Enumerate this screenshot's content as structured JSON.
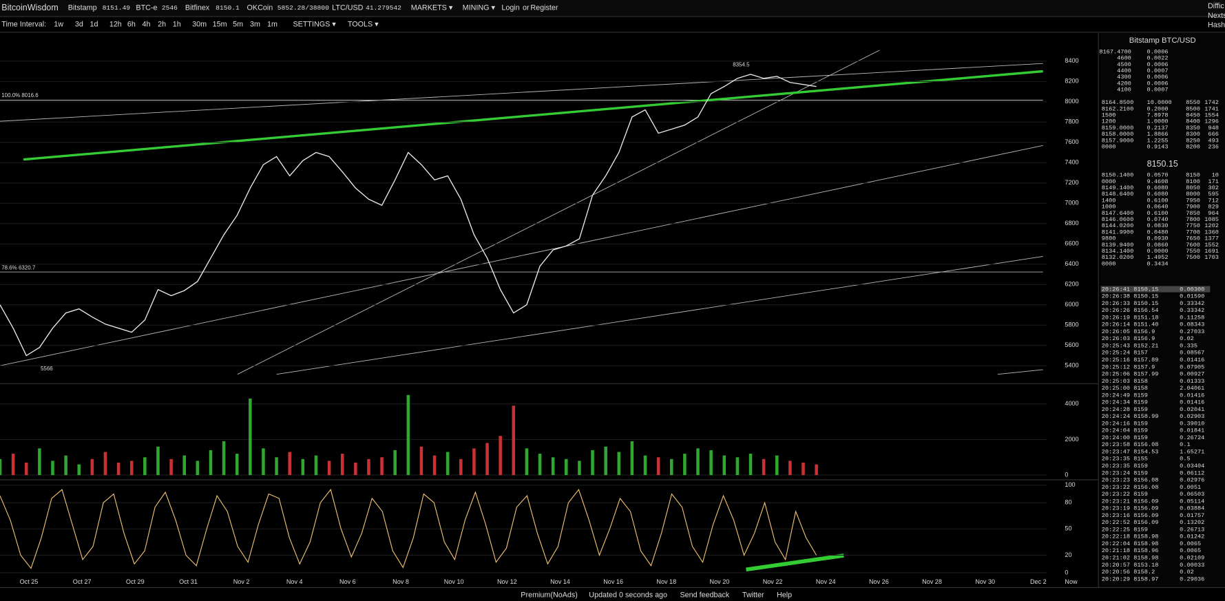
{
  "header": {
    "brand": "BitcoinWisdom",
    "tickers": [
      {
        "name": "Bitstamp",
        "price": "8151.49"
      },
      {
        "name": "BTC-e",
        "price": "2546"
      },
      {
        "name": "Bitfinex",
        "price": "8150.1"
      },
      {
        "name": "OKCoin",
        "price": "5852.28/38800"
      },
      {
        "name": "LTC/USD",
        "price": "41.279542"
      }
    ],
    "menus": [
      "MARKETS ▾",
      "MINING ▾"
    ],
    "login": "Login",
    "or": "or",
    "register": "Register",
    "side": [
      "Diffic",
      "Nexts",
      "Hash"
    ]
  },
  "toolbar": {
    "label": "Time Interval:",
    "intervals": [
      "1w",
      "3d",
      "1d",
      "12h",
      "6h",
      "4h",
      "2h",
      "1h",
      "30m",
      "15m",
      "5m",
      "3m",
      "1m"
    ],
    "settings": "SETTINGS ▾",
    "tools": "TOOLS ▾"
  },
  "price_chart": {
    "closes": [
      6000,
      5770,
      5500,
      5580,
      5770,
      5920,
      5960,
      5880,
      5810,
      5770,
      5730,
      5850,
      6150,
      6090,
      6140,
      6230,
      6460,
      6690,
      6880,
      7150,
      7380,
      7460,
      7270,
      7420,
      7500,
      7460,
      7310,
      7150,
      7040,
      6980,
      7230,
      7500,
      7380,
      7230,
      7270,
      7040,
      6690,
      6460,
      6150,
      5920,
      6000,
      6380,
      6540,
      6580,
      6650,
      7080,
      7270,
      7500,
      7850,
      7920,
      7690,
      7730,
      7770,
      7850,
      8080,
      8150,
      8230,
      8270,
      8230,
      8250,
      8190,
      8170,
      8150
    ],
    "color": "#e8e8e8",
    "ylim": [
      5231,
      8677
    ],
    "yticks": [
      5400,
      5600,
      5800,
      6000,
      6200,
      6400,
      6600,
      6800,
      7000,
      7200,
      7400,
      7600,
      7800,
      8000,
      8200,
      8400
    ],
    "annotations": [
      "100.0% 8016.6",
      "78.6% 6320.7",
      "8354.5",
      "5566"
    ]
  },
  "volume_chart": {
    "values": [
      900,
      1200,
      700,
      1500,
      800,
      1100,
      600,
      900,
      1300,
      700,
      800,
      1000,
      1600,
      900,
      1100,
      800,
      1400,
      1900,
      1200,
      4300,
      1500,
      1000,
      1300,
      900,
      1100,
      800,
      1200,
      700,
      900,
      1000,
      1400,
      4500,
      1600,
      1100,
      1300,
      900,
      1500,
      1800,
      2200,
      3900,
      1500,
      1200,
      1000,
      900,
      800,
      1400,
      1600,
      1300,
      1900,
      1100,
      1000,
      900,
      1200,
      1500,
      1400,
      1100,
      1000,
      1200,
      900,
      1100,
      800,
      700,
      600
    ],
    "up_color": "#2fa82f",
    "down_color": "#c83232",
    "ylim": [
      0,
      5091
    ],
    "yticks": [
      0,
      2000,
      4000
    ]
  },
  "oscillator": {
    "values": [
      88,
      60,
      20,
      5,
      40,
      85,
      95,
      55,
      15,
      30,
      80,
      90,
      45,
      10,
      25,
      75,
      92,
      60,
      20,
      8,
      50,
      88,
      70,
      30,
      12,
      55,
      90,
      85,
      40,
      10,
      35,
      80,
      95,
      50,
      18,
      45,
      85,
      70,
      25,
      6,
      40,
      90,
      80,
      35,
      15,
      60,
      92,
      55,
      12,
      28,
      75,
      88,
      45,
      10,
      30,
      80,
      95,
      60,
      20,
      50,
      85,
      70,
      25,
      8,
      45,
      90,
      75,
      30,
      12,
      55,
      88,
      60,
      20,
      45,
      80,
      35,
      15,
      70,
      40,
      20
    ],
    "color": "#f0c070",
    "ylim": [
      0,
      100
    ],
    "yticks": [
      0,
      20,
      50,
      80,
      100
    ]
  },
  "x_labels": [
    "Oct 25",
    "Oct 27",
    "Oct 29",
    "Oct 31",
    "Nov 2",
    "Nov 4",
    "Nov 6",
    "Nov 8",
    "Nov 10",
    "Nov 12",
    "Nov 14",
    "Nov 16",
    "Nov 18",
    "Nov 20",
    "Nov 22",
    "Nov 24",
    "Nov 26",
    "Nov 28",
    "Nov 30",
    "Dec 2",
    "Now"
  ],
  "order_book": {
    "title": "Bitstamp BTC/USD",
    "asks": [
      [
        "8167.4700",
        "0.0006"
      ],
      [
        "4600",
        "0.0022"
      ],
      [
        "4500",
        "0.0006"
      ],
      [
        "4400",
        "0.0007"
      ],
      [
        "4300",
        "0.0006"
      ],
      [
        "4200",
        "0.0006"
      ],
      [
        "4100",
        "0.0007"
      ]
    ],
    "upper": [
      [
        "8164.8500",
        "10.0000",
        "8550",
        "1742"
      ],
      [
        "8162.2100",
        "0.2000",
        "8500",
        "1741"
      ],
      [
        "1500",
        "7.8978",
        "8450",
        "1554"
      ],
      [
        "1200",
        "1.0000",
        "8400",
        "1296"
      ],
      [
        "8159.0000",
        "0.2137",
        "8350",
        "948"
      ],
      [
        "8158.0000",
        "1.8866",
        "8300",
        "666"
      ],
      [
        "8157.9000",
        "1.2255",
        "8250",
        "493"
      ],
      [
        "0000",
        "0.9143",
        "8200",
        "236"
      ]
    ],
    "last": "8150.15",
    "lower": [
      [
        "8150.1400",
        "0.0570",
        "8150",
        "10"
      ],
      [
        "0000",
        "9.4608",
        "8100",
        "171"
      ],
      [
        "8149.1400",
        "0.6080",
        "8050",
        "302"
      ],
      [
        "8148.6400",
        "0.6080",
        "8000",
        "595"
      ],
      [
        "1400",
        "0.6100",
        "7950",
        "712"
      ],
      [
        "1000",
        "0.0640",
        "7900",
        "829"
      ],
      [
        "8147.6400",
        "0.6100",
        "7850",
        "964"
      ],
      [
        "8146.0600",
        "0.0740",
        "7800",
        "1085"
      ],
      [
        "8144.0200",
        "0.0830",
        "7750",
        "1202"
      ],
      [
        "8141.9900",
        "0.0480",
        "7700",
        "1360"
      ],
      [
        "9800",
        "0.0930",
        "7650",
        "1377"
      ],
      [
        "8139.9400",
        "0.0860",
        "7600",
        "1552"
      ],
      [
        "8134.1400",
        "0.0000",
        "7550",
        "1691"
      ],
      [
        "8132.0200",
        "1.4952",
        "7500",
        "1703"
      ],
      [
        "0000",
        "0.3434"
      ]
    ]
  },
  "trades": {
    "rows": [
      [
        "20:26:41",
        "8150.15",
        "0.00300",
        "#e44"
      ],
      [
        "20:26:38",
        "8150.15",
        "0.01590",
        "#e44"
      ],
      [
        "20:26:33",
        "8150.15",
        "0.33342",
        "#e44"
      ],
      [
        "20:26:26",
        "8156.54",
        "0.33342",
        "#5c5"
      ],
      [
        "20:26:19",
        "8151.18",
        "0.11258",
        "#e44"
      ],
      [
        "20:26:14",
        "8151.40",
        "0.08343",
        "#e44"
      ],
      [
        "20:26:05",
        "8156.9",
        "0.27033",
        "#5c5"
      ],
      [
        "20:26:03",
        "8156.9",
        "0.02",
        "#e44"
      ],
      [
        "20:25:43",
        "8152.21",
        "0.335",
        "#e44"
      ],
      [
        "20:25:24",
        "8157",
        "0.08567",
        "#5c5"
      ],
      [
        "20:25:16",
        "8157.89",
        "0.01416",
        "#5c5"
      ],
      [
        "20:25:12",
        "8157.9",
        "0.07905",
        "#5c5"
      ],
      [
        "20:25:06",
        "8157.99",
        "0.00927",
        "#5c5"
      ],
      [
        "20:25:03",
        "8158",
        "0.01333",
        "#5c5"
      ],
      [
        "20:25:00",
        "8158",
        "2.04061",
        "#e44"
      ],
      [
        "20:24:49",
        "8159",
        "0.01416",
        "#5c5"
      ],
      [
        "20:24:34",
        "8159",
        "0.01416",
        "#5c5"
      ],
      [
        "20:24:28",
        "8159",
        "0.02041",
        "#5c5"
      ],
      [
        "20:24:24",
        "8158.99",
        "0.02903",
        "#5c5"
      ],
      [
        "20:24:16",
        "8159",
        "0.39010",
        "#5c5"
      ],
      [
        "20:24:04",
        "8159",
        "0.01841",
        "#5c5"
      ],
      [
        "20:24:00",
        "8159",
        "0.26724",
        "#5c5"
      ],
      [
        "20:23:58",
        "8156.08",
        "0.1",
        "#e44"
      ],
      [
        "20:23:47",
        "8154.53",
        "1.65271",
        "#e44"
      ],
      [
        "20:23:35",
        "8155",
        "0.5",
        "#e44"
      ],
      [
        "20:23:35",
        "8159",
        "0.03404",
        "#5c5"
      ],
      [
        "20:23:24",
        "8159",
        "0.06112",
        "#5c5"
      ],
      [
        "20:23:23",
        "8156.08",
        "0.02976",
        "#5c5"
      ],
      [
        "20:23:22",
        "8156.08",
        "0.0051",
        "#e44"
      ],
      [
        "20:23:22",
        "8159",
        "0.06503",
        "#5c5"
      ],
      [
        "20:23:21",
        "8156.09",
        "0.05114",
        "#e44"
      ],
      [
        "20:23:19",
        "8156.09",
        "0.03884",
        "#e44"
      ],
      [
        "20:23:16",
        "8156.09",
        "0.01757",
        "#e44"
      ],
      [
        "20:22:52",
        "8156.09",
        "0.13202",
        "#e44"
      ],
      [
        "20:22:25",
        "8159",
        "0.26713",
        "#5c5"
      ],
      [
        "20:22:18",
        "8158.98",
        "0.01242",
        "#5c5"
      ],
      [
        "20:22:04",
        "8158.98",
        "0.0065",
        "#5c5"
      ],
      [
        "20:21:18",
        "8158.96",
        "0.0065",
        "#5c5"
      ],
      [
        "20:21:02",
        "8158.98",
        "0.02109",
        "#5c5"
      ],
      [
        "20:20:57",
        "8153.18",
        "0.00033",
        "#e44"
      ],
      [
        "20:20:56",
        "8158.2",
        "0.02",
        "#5c5"
      ],
      [
        "20:20:29",
        "8158.97",
        "0.29036",
        "#5c5"
      ]
    ]
  },
  "footer": [
    "Premium(NoAds)",
    "Updated 0 seconds ago",
    "Send feedback",
    "Twitter",
    "Help"
  ]
}
